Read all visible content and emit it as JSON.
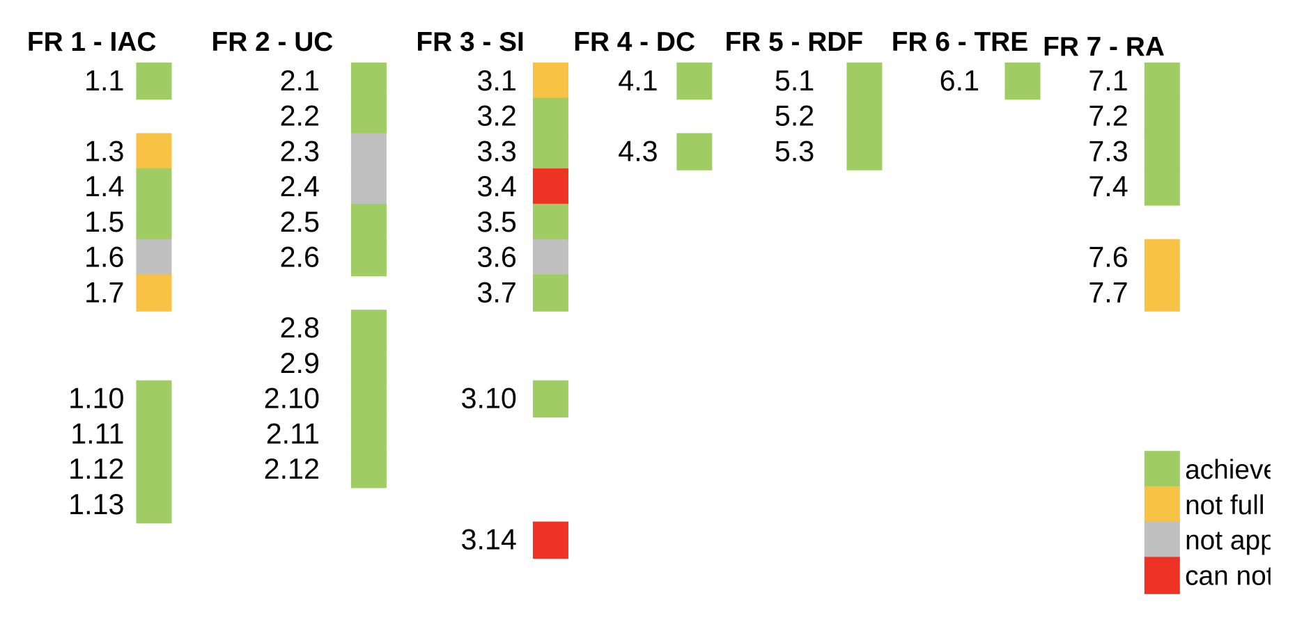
{
  "chart_data": {
    "type": "table",
    "status_colors": {
      "achieved": "#a0cd63",
      "not_fully": "#f8c244",
      "not_applicable": "#c0c0c0",
      "can_not": "#ee3224"
    },
    "legend": [
      {
        "status": "achieved",
        "label": "achieve"
      },
      {
        "status": "not_fully",
        "label": "not full"
      },
      {
        "status": "not_applicable",
        "label": "not app"
      },
      {
        "status": "can_not",
        "label": "can not"
      }
    ],
    "groups": [
      {
        "header": "FR 1 - IAC",
        "items": [
          {
            "label": "1.1",
            "row": 1,
            "status": "achieved"
          },
          {
            "label": "1.3",
            "row": 3,
            "status": "not_fully"
          },
          {
            "label": "1.4",
            "row": 4,
            "status": "achieved"
          },
          {
            "label": "1.5",
            "row": 5,
            "status": "achieved"
          },
          {
            "label": "1.6",
            "row": 6,
            "status": "not_applicable"
          },
          {
            "label": "1.7",
            "row": 7,
            "status": "not_fully"
          },
          {
            "label": "1.10",
            "row": 10,
            "status": "achieved"
          },
          {
            "label": "1.11",
            "row": 11,
            "status": "achieved"
          },
          {
            "label": "1.12",
            "row": 12,
            "status": "achieved"
          },
          {
            "label": "1.13",
            "row": 13,
            "status": "achieved"
          }
        ]
      },
      {
        "header": "FR 2 - UC",
        "items": [
          {
            "label": "2.1",
            "row": 1,
            "status": "achieved"
          },
          {
            "label": "2.2",
            "row": 2,
            "status": "achieved"
          },
          {
            "label": "2.3",
            "row": 3,
            "status": "not_applicable"
          },
          {
            "label": "2.4",
            "row": 4,
            "status": "not_applicable"
          },
          {
            "label": "2.5",
            "row": 5,
            "status": "achieved"
          },
          {
            "label": "2.6",
            "row": 6,
            "status": "achieved"
          },
          {
            "label": "2.8",
            "row": 8,
            "status": "achieved"
          },
          {
            "label": "2.9",
            "row": 9,
            "status": "achieved"
          },
          {
            "label": "2.10",
            "row": 10,
            "status": "achieved"
          },
          {
            "label": "2.11",
            "row": 11,
            "status": "achieved"
          },
          {
            "label": "2.12",
            "row": 12,
            "status": "achieved"
          }
        ]
      },
      {
        "header": "FR 3 - SI",
        "items": [
          {
            "label": "3.1",
            "row": 1,
            "status": "not_fully"
          },
          {
            "label": "3.2",
            "row": 2,
            "status": "achieved"
          },
          {
            "label": "3.3",
            "row": 3,
            "status": "achieved"
          },
          {
            "label": "3.4",
            "row": 4,
            "status": "can_not"
          },
          {
            "label": "3.5",
            "row": 5,
            "status": "achieved"
          },
          {
            "label": "3.6",
            "row": 6,
            "status": "not_applicable"
          },
          {
            "label": "3.7",
            "row": 7,
            "status": "achieved"
          },
          {
            "label": "3.10",
            "row": 10,
            "status": "achieved"
          },
          {
            "label": "3.14",
            "row": 14,
            "status": "can_not"
          }
        ]
      },
      {
        "header": "FR 4 - DC",
        "items": [
          {
            "label": "4.1",
            "row": 1,
            "status": "achieved"
          },
          {
            "label": "4.3",
            "row": 3,
            "status": "achieved"
          }
        ]
      },
      {
        "header": "FR 5 - RDF",
        "items": [
          {
            "label": "5.1",
            "row": 1,
            "status": "achieved"
          },
          {
            "label": "5.2",
            "row": 2,
            "status": "achieved"
          },
          {
            "label": "5.3",
            "row": 3,
            "status": "achieved"
          }
        ]
      },
      {
        "header": "FR 6 - TRE",
        "items": [
          {
            "label": "6.1",
            "row": 1,
            "status": "achieved"
          }
        ]
      },
      {
        "header": "FR 7 - RA",
        "items": [
          {
            "label": "7.1",
            "row": 1,
            "status": "achieved"
          },
          {
            "label": "7.2",
            "row": 2,
            "status": "achieved"
          },
          {
            "label": "7.3",
            "row": 3,
            "status": "achieved"
          },
          {
            "label": "7.4",
            "row": 4,
            "status": "achieved"
          },
          {
            "label": "7.6",
            "row": 6,
            "status": "not_fully"
          },
          {
            "label": "7.7",
            "row": 7,
            "status": "not_fully"
          }
        ]
      }
    ]
  }
}
